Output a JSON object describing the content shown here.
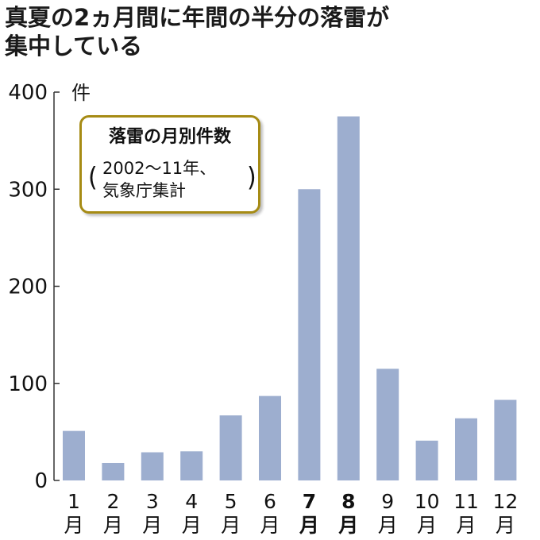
{
  "title": {
    "line1": "真夏の2ヵ月間に年間の半分の落雷が",
    "line2": "集中している"
  },
  "legend": {
    "title": "落雷の月別件数",
    "source_line1": "2002〜11年、",
    "source_line2": "気象庁集計",
    "paren_open": "(",
    "paren_close": ")"
  },
  "colors": {
    "bar": "#9daecf",
    "axis": "#333333",
    "legend_border": "#a68b14",
    "text": "#111111"
  },
  "chart_data": {
    "type": "bar",
    "title": "落雷の月別件数",
    "ylabel": "件",
    "ylim": [
      0,
      400
    ],
    "yticks": [
      0,
      100,
      200,
      300,
      400
    ],
    "grid": false,
    "categories": [
      "1\n月",
      "2\n月",
      "3\n月",
      "4\n月",
      "5\n月",
      "6\n月",
      "7\n月",
      "8\n月",
      "9\n月",
      "10\n月",
      "11\n月",
      "12\n月"
    ],
    "month_numbers": [
      "1",
      "2",
      "3",
      "4",
      "5",
      "6",
      "7",
      "8",
      "9",
      "10",
      "11",
      "12"
    ],
    "month_unit": "月",
    "highlighted": [
      "7",
      "8"
    ],
    "values": [
      51,
      18,
      29,
      30,
      67,
      87,
      300,
      375,
      115,
      41,
      64,
      83
    ]
  }
}
